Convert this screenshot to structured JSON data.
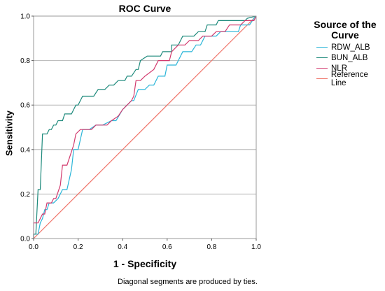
{
  "chart_data": {
    "type": "line",
    "title": "ROC Curve",
    "xlabel": "1 - Specificity",
    "ylabel": "Sensitivity",
    "xlim": [
      0,
      1
    ],
    "ylim": [
      0,
      1
    ],
    "xticks": [
      "0.0",
      "0.2",
      "0.4",
      "0.6",
      "0.8",
      "1.0"
    ],
    "yticks": [
      "0.0",
      "0.2",
      "0.4",
      "0.6",
      "0.8",
      "1.0"
    ],
    "grid": "horizontal",
    "legend_title": "Source of the Curve",
    "legend_position": "right",
    "footnote": "Diagonal segments are produced by ties.",
    "series": [
      {
        "name": "RDW_ALB",
        "color": "#2ab5d8",
        "points": [
          [
            0,
            0
          ],
          [
            0,
            0.02
          ],
          [
            0.02,
            0.02
          ],
          [
            0.03,
            0.07
          ],
          [
            0.04,
            0.09
          ],
          [
            0.05,
            0.13
          ],
          [
            0.06,
            0.13
          ],
          [
            0.07,
            0.16
          ],
          [
            0.09,
            0.16
          ],
          [
            0.11,
            0.18
          ],
          [
            0.13,
            0.22
          ],
          [
            0.15,
            0.22
          ],
          [
            0.17,
            0.31
          ],
          [
            0.18,
            0.4
          ],
          [
            0.2,
            0.4
          ],
          [
            0.22,
            0.49
          ],
          [
            0.25,
            0.49
          ],
          [
            0.28,
            0.51
          ],
          [
            0.31,
            0.51
          ],
          [
            0.35,
            0.53
          ],
          [
            0.37,
            0.53
          ],
          [
            0.4,
            0.58
          ],
          [
            0.42,
            0.6
          ],
          [
            0.44,
            0.62
          ],
          [
            0.45,
            0.62
          ],
          [
            0.47,
            0.67
          ],
          [
            0.5,
            0.67
          ],
          [
            0.52,
            0.69
          ],
          [
            0.54,
            0.69
          ],
          [
            0.56,
            0.73
          ],
          [
            0.59,
            0.73
          ],
          [
            0.6,
            0.78
          ],
          [
            0.64,
            0.78
          ],
          [
            0.67,
            0.84
          ],
          [
            0.71,
            0.84
          ],
          [
            0.73,
            0.87
          ],
          [
            0.75,
            0.87
          ],
          [
            0.77,
            0.91
          ],
          [
            0.82,
            0.91
          ],
          [
            0.84,
            0.93
          ],
          [
            0.92,
            0.93
          ],
          [
            0.93,
            0.96
          ],
          [
            0.97,
            0.96
          ],
          [
            0.99,
            0.99
          ],
          [
            1,
            1
          ]
        ]
      },
      {
        "name": "BUN_ALB",
        "color": "#1e8a7c",
        "points": [
          [
            0,
            0
          ],
          [
            0,
            0.02
          ],
          [
            0.01,
            0.02
          ],
          [
            0.02,
            0.22
          ],
          [
            0.03,
            0.22
          ],
          [
            0.04,
            0.47
          ],
          [
            0.06,
            0.47
          ],
          [
            0.07,
            0.49
          ],
          [
            0.08,
            0.49
          ],
          [
            0.09,
            0.51
          ],
          [
            0.1,
            0.51
          ],
          [
            0.11,
            0.53
          ],
          [
            0.13,
            0.53
          ],
          [
            0.14,
            0.56
          ],
          [
            0.17,
            0.56
          ],
          [
            0.19,
            0.6
          ],
          [
            0.2,
            0.6
          ],
          [
            0.22,
            0.64
          ],
          [
            0.27,
            0.64
          ],
          [
            0.29,
            0.67
          ],
          [
            0.32,
            0.67
          ],
          [
            0.34,
            0.69
          ],
          [
            0.36,
            0.69
          ],
          [
            0.38,
            0.71
          ],
          [
            0.41,
            0.71
          ],
          [
            0.42,
            0.73
          ],
          [
            0.44,
            0.73
          ],
          [
            0.46,
            0.76
          ],
          [
            0.47,
            0.76
          ],
          [
            0.48,
            0.8
          ],
          [
            0.51,
            0.82
          ],
          [
            0.57,
            0.82
          ],
          [
            0.58,
            0.84
          ],
          [
            0.62,
            0.84
          ],
          [
            0.62,
            0.87
          ],
          [
            0.65,
            0.87
          ],
          [
            0.67,
            0.91
          ],
          [
            0.72,
            0.91
          ],
          [
            0.74,
            0.93
          ],
          [
            0.77,
            0.93
          ],
          [
            0.78,
            0.96
          ],
          [
            0.82,
            0.96
          ],
          [
            0.83,
            0.98
          ],
          [
            0.95,
            0.98
          ],
          [
            0.96,
            0.99
          ],
          [
            1,
            1
          ]
        ]
      },
      {
        "name": "NLR",
        "color": "#d23a6e",
        "points": [
          [
            0,
            0
          ],
          [
            0,
            0.07
          ],
          [
            0.02,
            0.07
          ],
          [
            0.04,
            0.11
          ],
          [
            0.05,
            0.11
          ],
          [
            0.06,
            0.16
          ],
          [
            0.08,
            0.16
          ],
          [
            0.09,
            0.18
          ],
          [
            0.1,
            0.18
          ],
          [
            0.12,
            0.24
          ],
          [
            0.13,
            0.33
          ],
          [
            0.15,
            0.33
          ],
          [
            0.16,
            0.36
          ],
          [
            0.18,
            0.42
          ],
          [
            0.19,
            0.47
          ],
          [
            0.21,
            0.49
          ],
          [
            0.26,
            0.49
          ],
          [
            0.28,
            0.51
          ],
          [
            0.33,
            0.51
          ],
          [
            0.35,
            0.53
          ],
          [
            0.38,
            0.55
          ],
          [
            0.4,
            0.58
          ],
          [
            0.42,
            0.6
          ],
          [
            0.44,
            0.62
          ],
          [
            0.45,
            0.64
          ],
          [
            0.46,
            0.71
          ],
          [
            0.48,
            0.71
          ],
          [
            0.5,
            0.73
          ],
          [
            0.54,
            0.76
          ],
          [
            0.56,
            0.8
          ],
          [
            0.61,
            0.8
          ],
          [
            0.62,
            0.84
          ],
          [
            0.65,
            0.87
          ],
          [
            0.68,
            0.87
          ],
          [
            0.7,
            0.89
          ],
          [
            0.74,
            0.89
          ],
          [
            0.76,
            0.91
          ],
          [
            0.8,
            0.91
          ],
          [
            0.82,
            0.93
          ],
          [
            0.86,
            0.93
          ],
          [
            0.88,
            0.96
          ],
          [
            0.93,
            0.96
          ],
          [
            0.95,
            0.98
          ],
          [
            0.99,
            0.98
          ],
          [
            1,
            1
          ]
        ]
      },
      {
        "name": "Reference Line",
        "color": "#f07368",
        "points": [
          [
            0,
            0
          ],
          [
            1,
            1
          ]
        ]
      }
    ]
  }
}
